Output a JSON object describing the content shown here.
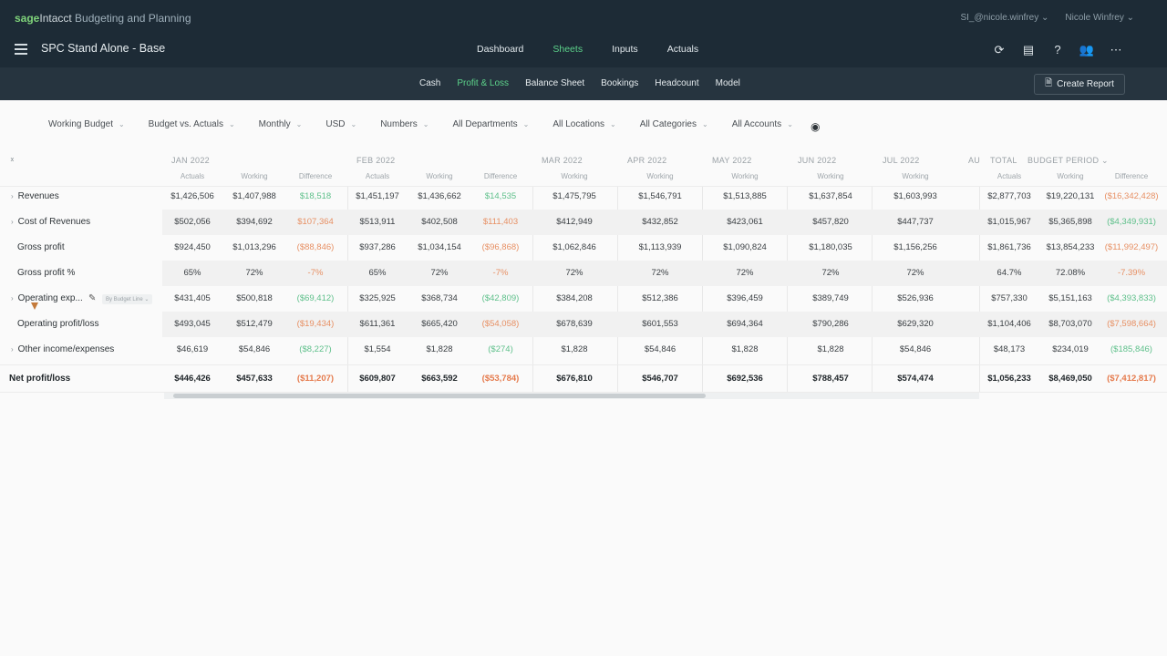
{
  "brand": {
    "sage": "sage",
    "intacct": "Intacct",
    "product": " Budgeting and Planning"
  },
  "user_menus": [
    "SI_@nicole.winfrey ⌄",
    "Nicole Winfrey ⌄"
  ],
  "plan_title": "SPC Stand Alone - Base",
  "main_nav": [
    {
      "label": "Dashboard",
      "active": false
    },
    {
      "label": "Sheets",
      "active": true
    },
    {
      "label": "Inputs",
      "active": false
    },
    {
      "label": "Actuals",
      "active": false
    }
  ],
  "top_icons": [
    "refresh-icon",
    "clipboard-icon",
    "help-icon",
    "users-icon",
    "more-icon"
  ],
  "sub_nav": [
    {
      "label": "Cash",
      "active": false
    },
    {
      "label": "Profit & Loss",
      "active": true
    },
    {
      "label": "Balance Sheet",
      "active": false
    },
    {
      "label": "Bookings",
      "active": false
    },
    {
      "label": "Headcount",
      "active": false
    },
    {
      "label": "Model",
      "active": false
    }
  ],
  "create_report": "Create Report",
  "filters": [
    "Working Budget",
    "Budget vs. Actuals",
    "Monthly",
    "USD",
    "Numbers",
    "All Departments",
    "All Locations",
    "All Categories",
    "All Accounts"
  ],
  "periods": [
    {
      "label": "JAN 2022",
      "cols": [
        "Actuals",
        "Working",
        "Difference"
      ]
    },
    {
      "label": "FEB 2022",
      "cols": [
        "Actuals",
        "Working",
        "Difference"
      ]
    },
    {
      "label": "MAR 2022",
      "cols": [
        "Working"
      ]
    },
    {
      "label": "APR 2022",
      "cols": [
        "Working"
      ]
    },
    {
      "label": "MAY 2022",
      "cols": [
        "Working"
      ]
    },
    {
      "label": "JUN 2022",
      "cols": [
        "Working"
      ]
    },
    {
      "label": "JUL 2022",
      "cols": [
        "Working"
      ]
    },
    {
      "label": "AU",
      "cols": []
    }
  ],
  "total_head": {
    "label": "TOTAL",
    "period": "BUDGET PERIOD",
    "cols": [
      "Actuals",
      "Working",
      "Difference"
    ]
  },
  "by_budget_line": "By Budget Line",
  "rows": [
    {
      "label": "Revenues",
      "expandable": true,
      "bold": false,
      "values": [
        "$1,426,506",
        "$1,407,988",
        "$18,518",
        "$1,451,197",
        "$1,436,662",
        "$14,535",
        "$1,475,795",
        "$1,546,791",
        "$1,513,885",
        "$1,637,854",
        "$1,603,993",
        "$2,877,703",
        "$19,220,131",
        "($16,342,428)"
      ],
      "styles": [
        "",
        "",
        "pos",
        "",
        "",
        "pos",
        "",
        "",
        "",
        "",
        "",
        "",
        "",
        "neg"
      ]
    },
    {
      "label": "Cost of Revenues",
      "expandable": true,
      "bold": false,
      "values": [
        "$502,056",
        "$394,692",
        "$107,364",
        "$513,911",
        "$402,508",
        "$111,403",
        "$412,949",
        "$432,852",
        "$423,061",
        "$457,820",
        "$447,737",
        "$1,015,967",
        "$5,365,898",
        "($4,349,931)"
      ],
      "styles": [
        "",
        "",
        "neg",
        "",
        "",
        "neg",
        "",
        "",
        "",
        "",
        "",
        "",
        "",
        "pos"
      ]
    },
    {
      "label": "Gross profit",
      "expandable": false,
      "bold": false,
      "values": [
        "$924,450",
        "$1,013,296",
        "($88,846)",
        "$937,286",
        "$1,034,154",
        "($96,868)",
        "$1,062,846",
        "$1,113,939",
        "$1,090,824",
        "$1,180,035",
        "$1,156,256",
        "$1,861,736",
        "$13,854,233",
        "($11,992,497)"
      ],
      "styles": [
        "",
        "",
        "neg",
        "",
        "",
        "neg",
        "",
        "",
        "",
        "",
        "",
        "",
        "",
        "neg"
      ]
    },
    {
      "label": "Gross profit %",
      "expandable": false,
      "bold": false,
      "values": [
        "65%",
        "72%",
        "-7%",
        "65%",
        "72%",
        "-7%",
        "72%",
        "72%",
        "72%",
        "72%",
        "72%",
        "64.7%",
        "72.08%",
        "-7.39%"
      ],
      "styles": [
        "",
        "",
        "neg",
        "",
        "",
        "neg",
        "",
        "",
        "",
        "",
        "",
        "",
        "",
        "neg"
      ]
    },
    {
      "label": "Operating exp...",
      "expandable": true,
      "bold": false,
      "values": [
        "$431,405",
        "$500,818",
        "($69,412)",
        "$325,925",
        "$368,734",
        "($42,809)",
        "$384,208",
        "$512,386",
        "$396,459",
        "$389,749",
        "$526,936",
        "$757,330",
        "$5,151,163",
        "($4,393,833)"
      ],
      "styles": [
        "",
        "",
        "pos",
        "",
        "",
        "pos",
        "",
        "",
        "",
        "",
        "",
        "",
        "",
        "pos"
      ]
    },
    {
      "label": "Operating profit/loss",
      "expandable": false,
      "bold": false,
      "values": [
        "$493,045",
        "$512,479",
        "($19,434)",
        "$611,361",
        "$665,420",
        "($54,058)",
        "$678,639",
        "$601,553",
        "$694,364",
        "$790,286",
        "$629,320",
        "$1,104,406",
        "$8,703,070",
        "($7,598,664)"
      ],
      "styles": [
        "",
        "",
        "neg",
        "",
        "",
        "neg",
        "",
        "",
        "",
        "",
        "",
        "",
        "",
        "neg"
      ]
    },
    {
      "label": "Other income/expenses",
      "expandable": true,
      "bold": false,
      "values": [
        "$46,619",
        "$54,846",
        "($8,227)",
        "$1,554",
        "$1,828",
        "($274)",
        "$1,828",
        "$54,846",
        "$1,828",
        "$1,828",
        "$54,846",
        "$48,173",
        "$234,019",
        "($185,846)"
      ],
      "styles": [
        "",
        "",
        "pos",
        "",
        "",
        "pos",
        "",
        "",
        "",
        "",
        "",
        "",
        "",
        "pos"
      ]
    },
    {
      "label": "Net profit/loss",
      "expandable": false,
      "bold": true,
      "values": [
        "$446,426",
        "$457,633",
        "($11,207)",
        "$609,807",
        "$663,592",
        "($53,784)",
        "$676,810",
        "$546,707",
        "$692,536",
        "$788,457",
        "$574,474",
        "$1,056,233",
        "$8,469,050",
        "($7,412,817)"
      ],
      "styles": [
        "",
        "",
        "neg",
        "",
        "",
        "neg",
        "",
        "",
        "",
        "",
        "",
        "",
        "",
        "neg"
      ]
    }
  ]
}
